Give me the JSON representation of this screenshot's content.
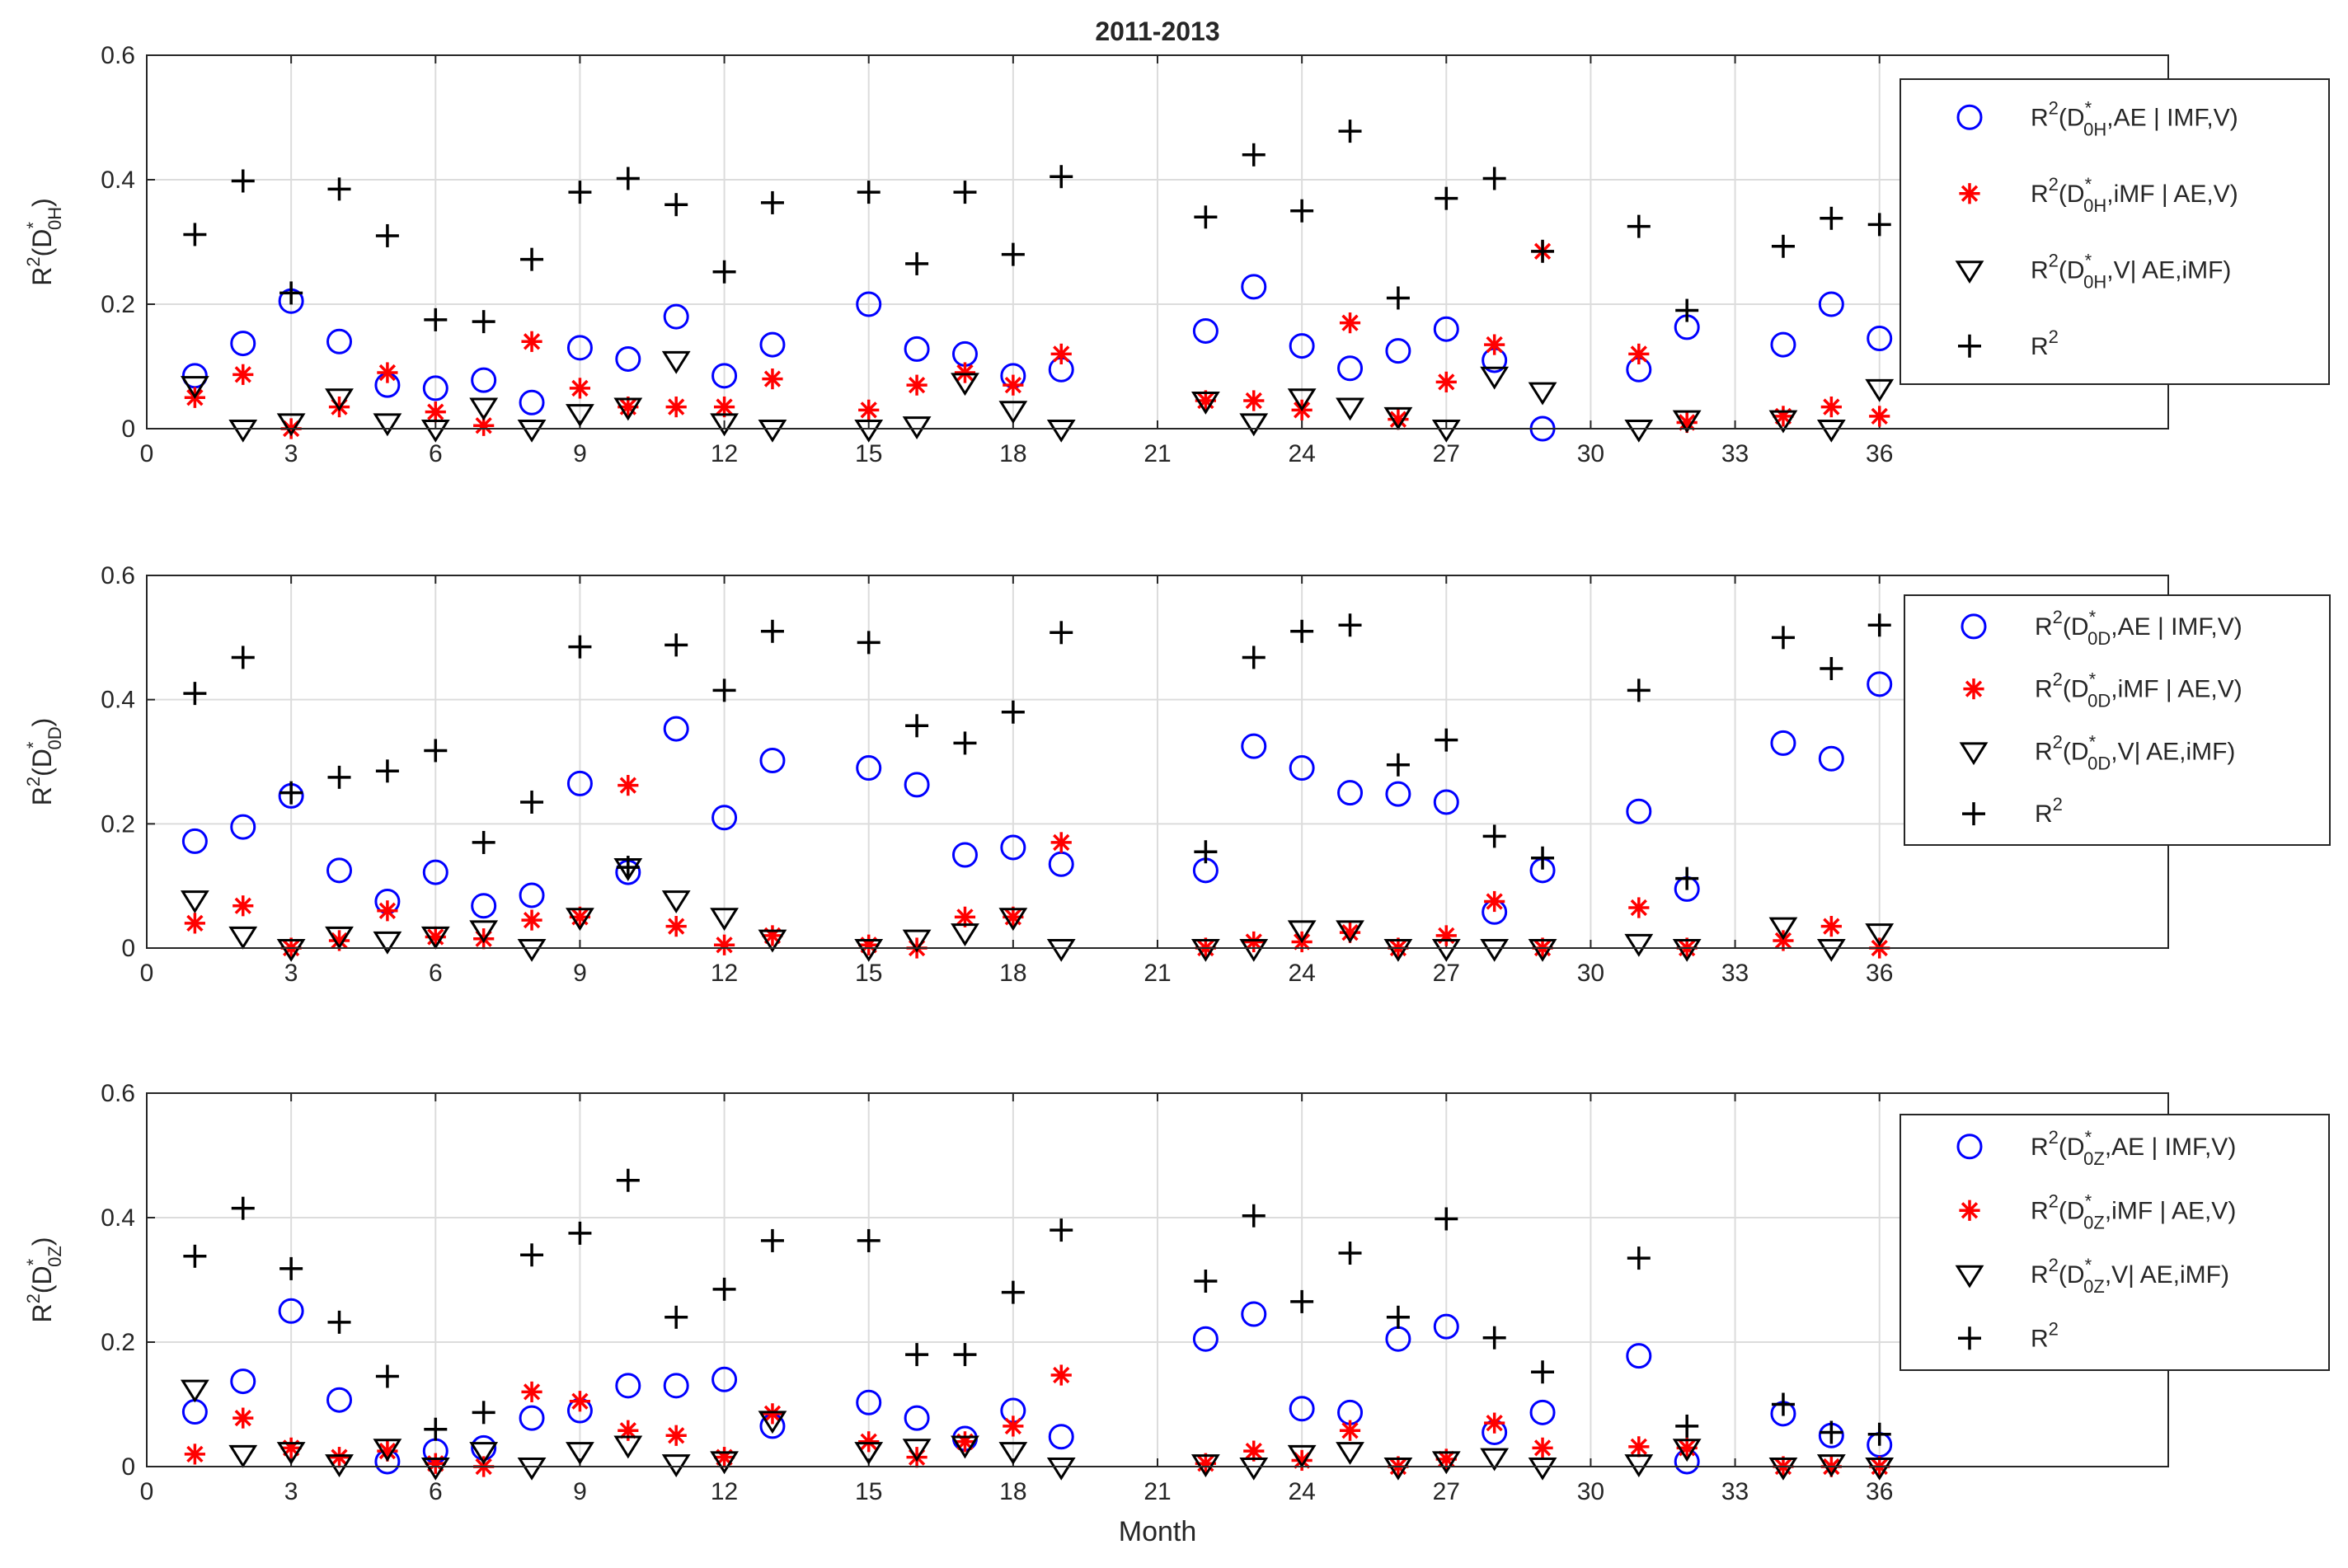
{
  "chart_data": [
    {
      "type": "scatter",
      "title": "2011-2013",
      "xlabel": "",
      "ylabel": {
        "base": "R",
        "sup": "2",
        "open": "(D",
        "sub": "0H",
        "star": "*",
        "close": ")"
      },
      "xlim": [
        0,
        42
      ],
      "ylim": [
        0,
        0.6
      ],
      "grid": true,
      "legend_position": "top-right",
      "xticks": [
        0,
        3,
        6,
        9,
        12,
        15,
        18,
        21,
        24,
        27,
        30,
        33,
        36
      ],
      "yticks": [
        0,
        0.2,
        0.4,
        0.6
      ],
      "series": [
        {
          "name": "R2(D0H*,AE | IMF,V)",
          "legend": {
            "pre": "R",
            "sup": "2",
            "mid": "(D",
            "sub": "0H",
            "star": "*",
            "post": ",AE | IMF,V)"
          },
          "marker": "circle",
          "color": "#0000ff",
          "x": [
            1,
            2,
            3,
            4,
            5,
            6,
            7,
            8,
            9,
            10,
            11,
            12,
            13,
            15,
            16,
            17,
            18,
            19,
            22,
            23,
            24,
            25,
            26,
            27,
            28,
            29,
            31,
            32,
            34,
            35,
            36
          ],
          "y": [
            0.085,
            0.137,
            0.205,
            0.14,
            0.07,
            0.065,
            0.078,
            0.042,
            0.13,
            0.112,
            0.18,
            0.085,
            0.135,
            0.2,
            0.128,
            0.12,
            0.085,
            0.095,
            0.157,
            0.228,
            0.133,
            0.097,
            0.125,
            0.16,
            0.11,
            0.0,
            0.095,
            0.163,
            0.135,
            0.2,
            0.145
          ]
        },
        {
          "name": "R2(D0H*,iMF | AE,V)",
          "legend": {
            "pre": "R",
            "sup": "2",
            "mid": "(D",
            "sub": "0H",
            "star": "*",
            "post": ",iMF | AE,V)"
          },
          "marker": "asterisk",
          "color": "#ff0000",
          "x": [
            1,
            2,
            3,
            4,
            5,
            6,
            7,
            8,
            9,
            10,
            11,
            12,
            13,
            15,
            16,
            17,
            18,
            19,
            22,
            23,
            24,
            25,
            26,
            27,
            28,
            29,
            31,
            32,
            34,
            35,
            36
          ],
          "y": [
            0.05,
            0.087,
            0.0,
            0.035,
            0.09,
            0.027,
            0.005,
            0.14,
            0.065,
            0.035,
            0.035,
            0.035,
            0.08,
            0.03,
            0.07,
            0.09,
            0.07,
            0.12,
            0.045,
            0.045,
            0.03,
            0.17,
            0.015,
            0.075,
            0.135,
            0.285,
            0.12,
            0.01,
            0.02,
            0.035,
            0.02
          ]
        },
        {
          "name": "R2(D0H*,V| AE,iMF)",
          "legend": {
            "pre": "R",
            "sup": "2",
            "mid": "(D",
            "sub": "0H",
            "star": "*",
            "post": ",V| AE,iMF)"
          },
          "marker": "triangle-down",
          "color": "#000000",
          "x": [
            1,
            2,
            3,
            4,
            5,
            6,
            7,
            8,
            9,
            10,
            11,
            12,
            13,
            15,
            16,
            17,
            18,
            19,
            22,
            23,
            24,
            25,
            26,
            27,
            28,
            29,
            31,
            32,
            34,
            35,
            36
          ],
          "y": [
            0.07,
            0.0,
            0.01,
            0.05,
            0.01,
            0.0,
            0.035,
            0.0,
            0.025,
            0.035,
            0.11,
            0.01,
            0.0,
            0.0,
            0.005,
            0.075,
            0.03,
            0.0,
            0.045,
            0.01,
            0.05,
            0.035,
            0.02,
            0.0,
            0.085,
            0.06,
            0.0,
            0.015,
            0.015,
            0.0,
            0.065
          ]
        },
        {
          "name": "R2",
          "legend": {
            "pre": "R",
            "sup": "2",
            "mid": "",
            "sub": "",
            "star": "",
            "post": ""
          },
          "marker": "plus",
          "color": "#000000",
          "x": [
            1,
            2,
            3,
            4,
            5,
            6,
            7,
            8,
            9,
            10,
            11,
            12,
            13,
            15,
            16,
            17,
            18,
            19,
            22,
            23,
            24,
            25,
            26,
            27,
            28,
            29,
            31,
            32,
            34,
            35,
            36
          ],
          "y": [
            0.312,
            0.398,
            0.218,
            0.385,
            0.31,
            0.175,
            0.172,
            0.272,
            0.38,
            0.402,
            0.36,
            0.252,
            0.363,
            0.38,
            0.265,
            0.38,
            0.28,
            0.405,
            0.34,
            0.44,
            0.35,
            0.478,
            0.21,
            0.37,
            0.402,
            0.285,
            0.325,
            0.19,
            0.293,
            0.338,
            0.328
          ]
        }
      ]
    },
    {
      "type": "scatter",
      "title": "",
      "xlabel": "",
      "ylabel": {
        "base": "R",
        "sup": "2",
        "open": "(D",
        "sub": "0D",
        "star": "*",
        "close": ")"
      },
      "xlim": [
        0,
        42
      ],
      "ylim": [
        0,
        0.6
      ],
      "grid": true,
      "legend_position": "top-right",
      "xticks": [
        0,
        3,
        6,
        9,
        12,
        15,
        18,
        21,
        24,
        27,
        30,
        33,
        36
      ],
      "yticks": [
        0,
        0.2,
        0.4,
        0.6
      ],
      "series": [
        {
          "name": "R2(D0D*,AE | IMF,V)",
          "legend": {
            "pre": "R",
            "sup": "2",
            "mid": "(D",
            "sub": "0D",
            "star": "*",
            "post": ",AE | IMF,V)"
          },
          "marker": "circle",
          "color": "#0000ff",
          "x": [
            1,
            2,
            3,
            4,
            5,
            6,
            7,
            8,
            9,
            10,
            11,
            12,
            13,
            15,
            16,
            17,
            18,
            19,
            22,
            23,
            24,
            25,
            26,
            27,
            28,
            29,
            31,
            32,
            34,
            35,
            36
          ],
          "y": [
            0.172,
            0.195,
            0.245,
            0.125,
            0.075,
            0.122,
            0.068,
            0.085,
            0.265,
            0.122,
            0.353,
            0.21,
            0.302,
            0.29,
            0.263,
            0.15,
            0.162,
            0.135,
            0.125,
            0.325,
            0.29,
            0.25,
            0.248,
            0.235,
            0.058,
            0.125,
            0.22,
            0.095,
            0.33,
            0.305,
            0.425
          ]
        },
        {
          "name": "R2(D0D*,iMF | AE,V)",
          "legend": {
            "pre": "R",
            "sup": "2",
            "mid": "(D",
            "sub": "0D",
            "star": "*",
            "post": ",iMF | AE,V)"
          },
          "marker": "asterisk",
          "color": "#ff0000",
          "x": [
            1,
            2,
            3,
            4,
            5,
            6,
            7,
            8,
            9,
            10,
            11,
            12,
            13,
            15,
            16,
            17,
            18,
            19,
            22,
            23,
            24,
            25,
            26,
            27,
            28,
            29,
            31,
            32,
            34,
            35,
            36
          ],
          "y": [
            0.04,
            0.068,
            0.0,
            0.012,
            0.06,
            0.018,
            0.015,
            0.045,
            0.05,
            0.262,
            0.035,
            0.005,
            0.02,
            0.005,
            0.0,
            0.05,
            0.05,
            0.17,
            0.0,
            0.01,
            0.01,
            0.025,
            0.0,
            0.02,
            0.075,
            0.0,
            0.065,
            0.0,
            0.012,
            0.035,
            0.0
          ]
        },
        {
          "name": "R2(D0D*,V| AE,iMF)",
          "legend": {
            "pre": "R",
            "sup": "2",
            "mid": "(D",
            "sub": "0D",
            "star": "*",
            "post": ",V| AE,iMF)"
          },
          "marker": "triangle-down",
          "color": "#000000",
          "x": [
            1,
            2,
            3,
            4,
            5,
            6,
            7,
            8,
            9,
            10,
            11,
            12,
            13,
            15,
            16,
            17,
            18,
            19,
            22,
            23,
            24,
            25,
            26,
            27,
            28,
            29,
            31,
            32,
            34,
            35,
            36
          ],
          "y": [
            0.078,
            0.02,
            0.0,
            0.02,
            0.012,
            0.02,
            0.03,
            0.0,
            0.05,
            0.13,
            0.078,
            0.05,
            0.015,
            0.0,
            0.015,
            0.025,
            0.05,
            0.0,
            0.0,
            0.0,
            0.03,
            0.03,
            0.0,
            0.0,
            0.0,
            0.0,
            0.008,
            0.0,
            0.035,
            0.0,
            0.025
          ]
        },
        {
          "name": "R2",
          "legend": {
            "pre": "R",
            "sup": "2",
            "mid": "",
            "sub": "",
            "star": "",
            "post": ""
          },
          "marker": "plus",
          "color": "#000000",
          "x": [
            1,
            2,
            3,
            4,
            5,
            6,
            7,
            8,
            9,
            10,
            11,
            12,
            13,
            15,
            16,
            17,
            18,
            19,
            22,
            23,
            24,
            25,
            26,
            27,
            28,
            29,
            31,
            32,
            34,
            35,
            36
          ],
          "y": [
            0.41,
            0.468,
            0.25,
            0.275,
            0.285,
            0.318,
            0.17,
            0.235,
            0.485,
            0.13,
            0.488,
            0.415,
            0.51,
            0.492,
            0.358,
            0.33,
            0.38,
            0.508,
            0.155,
            0.468,
            0.51,
            0.52,
            0.295,
            0.335,
            0.18,
            0.145,
            0.415,
            0.112,
            0.5,
            0.45,
            0.52
          ]
        }
      ]
    },
    {
      "type": "scatter",
      "title": "",
      "xlabel": "Month",
      "ylabel": {
        "base": "R",
        "sup": "2",
        "open": "(D",
        "sub": "0Z",
        "star": "*",
        "close": ")"
      },
      "xlim": [
        0,
        42
      ],
      "ylim": [
        0,
        0.6
      ],
      "grid": true,
      "legend_position": "top-right",
      "xticks": [
        0,
        3,
        6,
        9,
        12,
        15,
        18,
        21,
        24,
        27,
        30,
        33,
        36
      ],
      "yticks": [
        0,
        0.2,
        0.4,
        0.6
      ],
      "series": [
        {
          "name": "R2(D0Z*,AE | IMF,V)",
          "legend": {
            "pre": "R",
            "sup": "2",
            "mid": "(D",
            "sub": "0Z",
            "star": "*",
            "post": ",AE | IMF,V)"
          },
          "marker": "circle",
          "color": "#0000ff",
          "x": [
            1,
            2,
            3,
            4,
            5,
            6,
            7,
            8,
            9,
            10,
            11,
            12,
            13,
            15,
            16,
            17,
            18,
            19,
            22,
            23,
            24,
            25,
            26,
            27,
            28,
            29,
            31,
            32,
            34,
            35,
            36
          ],
          "y": [
            0.088,
            0.137,
            0.25,
            0.107,
            0.008,
            0.025,
            0.03,
            0.078,
            0.09,
            0.13,
            0.13,
            0.14,
            0.065,
            0.103,
            0.078,
            0.045,
            0.09,
            0.048,
            0.205,
            0.245,
            0.093,
            0.087,
            0.205,
            0.225,
            0.055,
            0.087,
            0.178,
            0.008,
            0.085,
            0.05,
            0.035
          ]
        },
        {
          "name": "R2(D0Z*,iMF | AE,V)",
          "legend": {
            "pre": "R",
            "sup": "2",
            "mid": "(D",
            "sub": "0Z",
            "star": "*",
            "post": ",iMF | AE,V)"
          },
          "marker": "asterisk",
          "color": "#ff0000",
          "x": [
            1,
            2,
            3,
            4,
            5,
            6,
            7,
            8,
            9,
            10,
            11,
            12,
            13,
            15,
            16,
            17,
            18,
            19,
            22,
            23,
            24,
            25,
            26,
            27,
            28,
            29,
            31,
            32,
            34,
            35,
            36
          ],
          "y": [
            0.02,
            0.078,
            0.03,
            0.015,
            0.025,
            0.005,
            0.0,
            0.12,
            0.105,
            0.058,
            0.05,
            0.015,
            0.085,
            0.04,
            0.015,
            0.04,
            0.065,
            0.147,
            0.005,
            0.025,
            0.01,
            0.058,
            0.0,
            0.012,
            0.07,
            0.03,
            0.032,
            0.03,
            0.0,
            0.0,
            0.0
          ]
        },
        {
          "name": "R2(D0Z*,V| AE,iMF)",
          "legend": {
            "pre": "R",
            "sup": "2",
            "mid": "(D",
            "sub": "0Z",
            "star": "*",
            "post": ",V| AE,iMF)"
          },
          "marker": "triangle-down",
          "color": "#000000",
          "x": [
            1,
            2,
            3,
            4,
            5,
            6,
            7,
            8,
            9,
            10,
            11,
            12,
            13,
            15,
            16,
            17,
            18,
            19,
            22,
            23,
            24,
            25,
            26,
            27,
            28,
            29,
            31,
            32,
            34,
            35,
            36
          ],
          "y": [
            0.125,
            0.02,
            0.025,
            0.005,
            0.03,
            0.0,
            0.025,
            0.0,
            0.025,
            0.035,
            0.005,
            0.01,
            0.075,
            0.025,
            0.03,
            0.035,
            0.025,
            0.0,
            0.005,
            0.0,
            0.02,
            0.025,
            0.0,
            0.01,
            0.015,
            0.0,
            0.005,
            0.03,
            0.0,
            0.005,
            0.0
          ]
        },
        {
          "name": "R2",
          "legend": {
            "pre": "R",
            "sup": "2",
            "mid": "",
            "sub": "",
            "star": "",
            "post": ""
          },
          "marker": "plus",
          "color": "#000000",
          "x": [
            1,
            2,
            3,
            4,
            5,
            6,
            7,
            8,
            9,
            10,
            11,
            12,
            13,
            15,
            16,
            17,
            18,
            19,
            22,
            23,
            24,
            25,
            26,
            27,
            28,
            29,
            31,
            32,
            34,
            35,
            36
          ],
          "y": [
            0.338,
            0.415,
            0.318,
            0.232,
            0.145,
            0.06,
            0.087,
            0.34,
            0.375,
            0.46,
            0.24,
            0.285,
            0.363,
            0.363,
            0.18,
            0.18,
            0.28,
            0.38,
            0.298,
            0.403,
            0.265,
            0.343,
            0.24,
            0.398,
            0.207,
            0.152,
            0.335,
            0.065,
            0.1,
            0.055,
            0.052
          ]
        }
      ]
    }
  ]
}
